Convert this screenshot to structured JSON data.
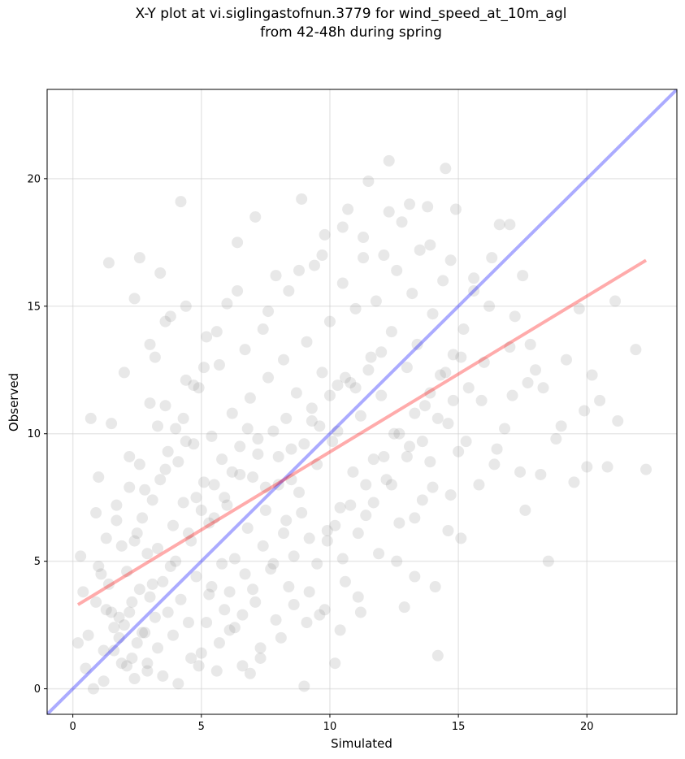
{
  "title": {
    "line1": "X-Y plot at vi.siglingastofnun.3779 for wind_speed_at_10m_agl",
    "line2": "from 42-48h during spring"
  },
  "chart_data": {
    "type": "scatter",
    "xlabel": "Simulated",
    "ylabel": "Observed",
    "xlim": [
      -1.0,
      23.5
    ],
    "ylim": [
      -1.0,
      23.5
    ],
    "xticks": [
      0,
      5,
      10,
      15,
      20
    ],
    "yticks": [
      0,
      5,
      10,
      15,
      20
    ],
    "grid": true,
    "point_color": "#808080",
    "point_opacity": 0.18,
    "lines": [
      {
        "role": "one-to-one",
        "color": "#0000ff",
        "opacity": 0.33,
        "x": [
          -1.0,
          23.5
        ],
        "y": [
          -1.0,
          23.5
        ]
      },
      {
        "role": "regression",
        "color": "#ff0000",
        "opacity": 0.33,
        "x": [
          0.2,
          22.3
        ],
        "y": [
          3.3,
          16.8
        ]
      }
    ],
    "points": [
      [
        0.2,
        1.8
      ],
      [
        0.3,
        5.2
      ],
      [
        0.4,
        3.8
      ],
      [
        0.5,
        0.8
      ],
      [
        0.6,
        2.1
      ],
      [
        0.7,
        10.6
      ],
      [
        0.8,
        0.0
      ],
      [
        0.9,
        6.9
      ],
      [
        1.0,
        8.3
      ],
      [
        1.1,
        4.5
      ],
      [
        1.2,
        0.3
      ],
      [
        1.3,
        3.1
      ],
      [
        1.4,
        16.7
      ],
      [
        1.5,
        10.4
      ],
      [
        1.6,
        1.5
      ],
      [
        1.7,
        7.2
      ],
      [
        1.8,
        2.8
      ],
      [
        1.9,
        5.6
      ],
      [
        2.0,
        12.4
      ],
      [
        2.1,
        0.9
      ],
      [
        2.2,
        9.1
      ],
      [
        2.3,
        3.4
      ],
      [
        2.4,
        15.3
      ],
      [
        2.5,
        6.1
      ],
      [
        2.6,
        16.9
      ],
      [
        2.7,
        2.2
      ],
      [
        2.8,
        7.8
      ],
      [
        2.9,
        1.0
      ],
      [
        3.0,
        11.2
      ],
      [
        3.1,
        4.1
      ],
      [
        3.2,
        13.0
      ],
      [
        3.3,
        5.5
      ],
      [
        3.4,
        16.3
      ],
      [
        3.5,
        0.5
      ],
      [
        3.6,
        8.6
      ],
      [
        3.7,
        3.0
      ],
      [
        3.8,
        14.6
      ],
      [
        3.9,
        6.4
      ],
      [
        4.0,
        10.2
      ],
      [
        4.1,
        0.2
      ],
      [
        4.2,
        19.1
      ],
      [
        4.3,
        7.3
      ],
      [
        4.4,
        12.1
      ],
      [
        4.5,
        2.6
      ],
      [
        4.6,
        5.8
      ],
      [
        4.7,
        9.6
      ],
      [
        4.8,
        4.4
      ],
      [
        4.9,
        11.8
      ],
      [
        5.0,
        1.4
      ],
      [
        5.1,
        8.1
      ],
      [
        5.2,
        13.8
      ],
      [
        5.3,
        3.7
      ],
      [
        5.4,
        9.9
      ],
      [
        5.5,
        6.7
      ],
      [
        5.6,
        0.7
      ],
      [
        5.7,
        12.7
      ],
      [
        5.8,
        4.9
      ],
      [
        5.9,
        7.5
      ],
      [
        6.0,
        15.1
      ],
      [
        6.1,
        2.3
      ],
      [
        6.2,
        10.8
      ],
      [
        6.3,
        5.1
      ],
      [
        6.4,
        17.5
      ],
      [
        6.5,
        8.4
      ],
      [
        6.6,
        0.9
      ],
      [
        6.7,
        13.3
      ],
      [
        6.8,
        6.3
      ],
      [
        6.9,
        11.4
      ],
      [
        7.0,
        3.9
      ],
      [
        7.1,
        18.5
      ],
      [
        7.2,
        9.2
      ],
      [
        7.3,
        1.6
      ],
      [
        7.4,
        14.1
      ],
      [
        7.5,
        7.0
      ],
      [
        7.6,
        12.2
      ],
      [
        7.7,
        4.7
      ],
      [
        7.8,
        10.1
      ],
      [
        7.9,
        16.2
      ],
      [
        8.0,
        8.0
      ],
      [
        8.1,
        2.0
      ],
      [
        8.2,
        12.9
      ],
      [
        8.3,
        6.6
      ],
      [
        8.4,
        15.6
      ],
      [
        8.5,
        9.4
      ],
      [
        8.6,
        3.3
      ],
      [
        8.7,
        11.6
      ],
      [
        8.8,
        7.7
      ],
      [
        8.9,
        19.2
      ],
      [
        9.0,
        0.1
      ],
      [
        9.1,
        13.6
      ],
      [
        9.2,
        5.9
      ],
      [
        9.3,
        10.5
      ],
      [
        9.4,
        16.6
      ],
      [
        9.5,
        8.8
      ],
      [
        9.6,
        2.9
      ],
      [
        9.7,
        12.4
      ],
      [
        9.8,
        17.8
      ],
      [
        9.9,
        6.2
      ],
      [
        10.0,
        14.4
      ],
      [
        10.1,
        9.7
      ],
      [
        10.2,
        1.0
      ],
      [
        10.3,
        11.9
      ],
      [
        10.4,
        7.1
      ],
      [
        10.5,
        15.9
      ],
      [
        10.6,
        4.2
      ],
      [
        10.7,
        18.8
      ],
      [
        10.8,
        12.0
      ],
      [
        10.9,
        8.5
      ],
      [
        11.0,
        14.9
      ],
      [
        11.1,
        3.6
      ],
      [
        11.2,
        10.7
      ],
      [
        11.3,
        17.7
      ],
      [
        11.4,
        6.8
      ],
      [
        11.5,
        19.9
      ],
      [
        11.6,
        13.0
      ],
      [
        11.7,
        9.0
      ],
      [
        11.8,
        15.2
      ],
      [
        11.9,
        5.3
      ],
      [
        12.0,
        11.5
      ],
      [
        12.1,
        17.0
      ],
      [
        12.2,
        8.2
      ],
      [
        12.3,
        20.7
      ],
      [
        12.4,
        14.0
      ],
      [
        12.5,
        10.0
      ],
      [
        12.6,
        16.4
      ],
      [
        12.7,
        6.5
      ],
      [
        12.8,
        18.3
      ],
      [
        12.9,
        3.2
      ],
      [
        13.0,
        12.6
      ],
      [
        13.1,
        9.5
      ],
      [
        13.2,
        15.5
      ],
      [
        13.3,
        4.4
      ],
      [
        13.4,
        13.5
      ],
      [
        13.5,
        17.2
      ],
      [
        13.6,
        7.4
      ],
      [
        13.7,
        11.1
      ],
      [
        13.8,
        18.9
      ],
      [
        13.9,
        8.9
      ],
      [
        14.0,
        14.7
      ],
      [
        14.1,
        4.0
      ],
      [
        14.2,
        1.3
      ],
      [
        14.3,
        12.3
      ],
      [
        14.4,
        16.0
      ],
      [
        14.5,
        20.4
      ],
      [
        14.6,
        10.4
      ],
      [
        14.7,
        7.6
      ],
      [
        14.8,
        13.1
      ],
      [
        14.9,
        18.8
      ],
      [
        15.0,
        9.3
      ],
      [
        15.1,
        5.9
      ],
      [
        15.2,
        14.1
      ],
      [
        15.4,
        11.8
      ],
      [
        15.6,
        16.1
      ],
      [
        15.8,
        8.0
      ],
      [
        16.0,
        12.8
      ],
      [
        16.2,
        15.0
      ],
      [
        16.4,
        8.8
      ],
      [
        16.6,
        18.2
      ],
      [
        16.8,
        10.2
      ],
      [
        17.0,
        13.4
      ],
      [
        17.2,
        14.6
      ],
      [
        17.4,
        8.5
      ],
      [
        17.6,
        7.0
      ],
      [
        17.8,
        13.5
      ],
      [
        18.0,
        12.5
      ],
      [
        18.2,
        8.4
      ],
      [
        18.5,
        5.0
      ],
      [
        18.8,
        9.8
      ],
      [
        19.0,
        10.3
      ],
      [
        19.5,
        8.1
      ],
      [
        19.9,
        10.9
      ],
      [
        20.0,
        8.7
      ],
      [
        20.2,
        12.3
      ],
      [
        20.5,
        11.3
      ],
      [
        20.8,
        8.7
      ],
      [
        21.1,
        15.2
      ],
      [
        21.2,
        10.5
      ],
      [
        21.9,
        13.3
      ],
      [
        22.3,
        8.6
      ],
      [
        19.7,
        14.9
      ],
      [
        2.0,
        2.5
      ],
      [
        2.2,
        3.0
      ],
      [
        2.5,
        1.8
      ],
      [
        2.8,
        2.2
      ],
      [
        3.0,
        3.6
      ],
      [
        1.8,
        2.0
      ],
      [
        2.3,
        1.2
      ],
      [
        3.2,
        2.8
      ],
      [
        2.6,
        3.9
      ],
      [
        1.5,
        3.0
      ],
      [
        3.5,
        4.2
      ],
      [
        4.0,
        5.0
      ],
      [
        4.2,
        3.5
      ],
      [
        3.8,
        4.8
      ],
      [
        2.9,
        5.3
      ],
      [
        4.5,
        6.1
      ],
      [
        5.0,
        7.0
      ],
      [
        5.3,
        6.5
      ],
      [
        4.8,
        7.5
      ],
      [
        5.5,
        8.0
      ],
      [
        6.0,
        7.2
      ],
      [
        6.2,
        8.5
      ],
      [
        5.8,
        9.0
      ],
      [
        6.5,
        9.5
      ],
      [
        7.0,
        8.3
      ],
      [
        7.2,
        9.8
      ],
      [
        6.8,
        10.2
      ],
      [
        7.5,
        7.9
      ],
      [
        8.0,
        9.1
      ],
      [
        8.3,
        10.6
      ],
      [
        8.5,
        8.2
      ],
      [
        9.0,
        9.6
      ],
      [
        9.3,
        11.0
      ],
      [
        9.6,
        10.3
      ],
      [
        10.0,
        11.5
      ],
      [
        10.3,
        10.1
      ],
      [
        10.6,
        12.2
      ],
      [
        11.0,
        11.8
      ],
      [
        11.5,
        12.5
      ],
      [
        12.0,
        13.2
      ],
      [
        1.2,
        1.5
      ],
      [
        1.6,
        2.4
      ],
      [
        2.1,
        4.6
      ],
      [
        2.4,
        5.8
      ],
      [
        2.7,
        6.7
      ],
      [
        3.1,
        7.4
      ],
      [
        3.4,
        8.2
      ],
      [
        3.7,
        9.3
      ],
      [
        4.1,
        8.9
      ],
      [
        4.4,
        9.7
      ],
      [
        1.0,
        4.8
      ],
      [
        1.3,
        5.9
      ],
      [
        1.7,
        6.6
      ],
      [
        2.2,
        7.9
      ],
      [
        2.6,
        8.8
      ],
      [
        3.3,
        10.3
      ],
      [
        3.6,
        11.1
      ],
      [
        4.3,
        10.6
      ],
      [
        4.7,
        11.9
      ],
      [
        5.1,
        12.6
      ],
      [
        5.4,
        4.0
      ],
      [
        5.9,
        3.1
      ],
      [
        6.3,
        2.4
      ],
      [
        6.7,
        4.5
      ],
      [
        7.1,
        3.4
      ],
      [
        7.4,
        5.6
      ],
      [
        7.8,
        4.9
      ],
      [
        8.2,
        6.1
      ],
      [
        8.6,
        5.2
      ],
      [
        8.9,
        6.9
      ],
      [
        9.2,
        3.8
      ],
      [
        9.5,
        4.9
      ],
      [
        9.9,
        5.8
      ],
      [
        10.2,
        6.4
      ],
      [
        10.5,
        5.1
      ],
      [
        10.8,
        7.2
      ],
      [
        11.1,
        6.1
      ],
      [
        11.4,
        8.0
      ],
      [
        11.7,
        7.3
      ],
      [
        12.1,
        9.1
      ],
      [
        12.4,
        8.0
      ],
      [
        12.7,
        10.0
      ],
      [
        13.0,
        9.1
      ],
      [
        13.3,
        10.8
      ],
      [
        13.6,
        9.7
      ],
      [
        13.9,
        11.6
      ],
      [
        14.2,
        10.6
      ],
      [
        14.5,
        12.4
      ],
      [
        14.8,
        11.3
      ],
      [
        15.1,
        13.0
      ],
      [
        0.9,
        3.4
      ],
      [
        1.4,
        4.1
      ],
      [
        1.9,
        1.0
      ],
      [
        2.4,
        0.4
      ],
      [
        2.9,
        0.7
      ],
      [
        3.3,
        1.6
      ],
      [
        3.9,
        2.1
      ],
      [
        4.6,
        1.2
      ],
      [
        5.2,
        2.6
      ],
      [
        5.7,
        1.8
      ],
      [
        6.1,
        3.8
      ],
      [
        6.6,
        2.9
      ],
      [
        7.3,
        1.2
      ],
      [
        7.9,
        2.7
      ],
      [
        8.4,
        4.0
      ],
      [
        9.1,
        2.6
      ],
      [
        9.8,
        3.1
      ],
      [
        10.4,
        2.3
      ],
      [
        11.2,
        3.0
      ],
      [
        12.6,
        5.0
      ],
      [
        13.3,
        6.7
      ],
      [
        14.0,
        7.9
      ],
      [
        14.6,
        6.2
      ],
      [
        15.3,
        9.7
      ],
      [
        15.9,
        11.3
      ],
      [
        16.5,
        9.4
      ],
      [
        17.1,
        11.5
      ],
      [
        17.7,
        12.0
      ],
      [
        18.3,
        11.8
      ],
      [
        19.2,
        12.9
      ],
      [
        3.0,
        13.5
      ],
      [
        3.6,
        14.4
      ],
      [
        4.4,
        15.0
      ],
      [
        5.6,
        14.0
      ],
      [
        6.4,
        15.6
      ],
      [
        7.6,
        14.8
      ],
      [
        8.8,
        16.4
      ],
      [
        9.7,
        17.0
      ],
      [
        10.5,
        18.1
      ],
      [
        11.3,
        16.9
      ],
      [
        12.3,
        18.7
      ],
      [
        13.1,
        19.0
      ],
      [
        13.9,
        17.4
      ],
      [
        14.7,
        16.8
      ],
      [
        15.6,
        15.6
      ],
      [
        16.3,
        16.9
      ],
      [
        17.0,
        18.2
      ],
      [
        17.5,
        16.2
      ],
      [
        4.9,
        0.9
      ],
      [
        6.9,
        0.6
      ]
    ]
  }
}
